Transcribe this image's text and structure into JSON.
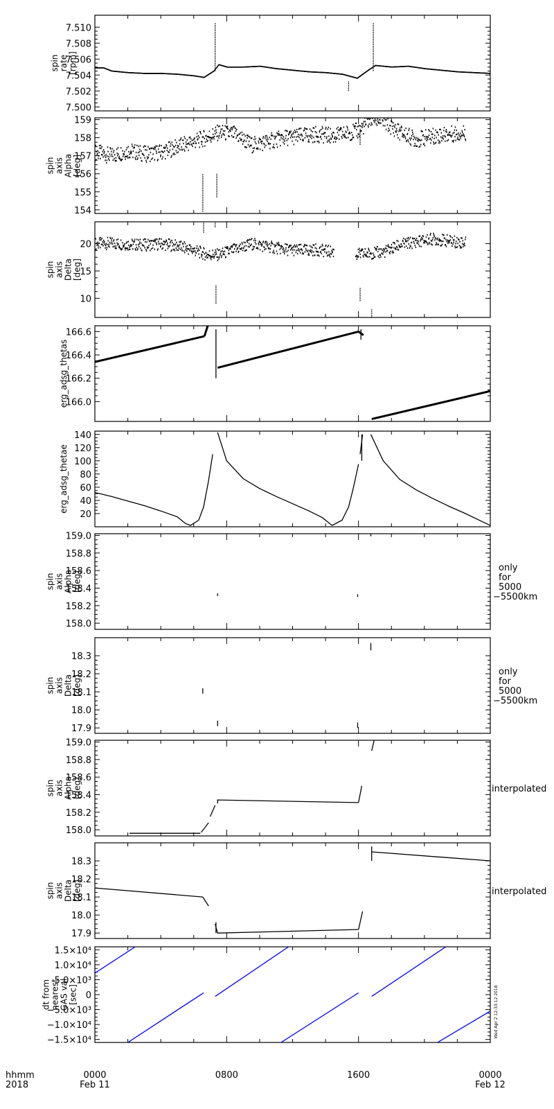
{
  "time_axis": {
    "row_labels": [
      "hhmm",
      "2018"
    ],
    "ticks": [
      {
        "time": "0000",
        "date": "Feb 11"
      },
      {
        "time": "0800",
        "date": ""
      },
      {
        "time": "1600",
        "date": ""
      },
      {
        "time": "0000",
        "date": "Feb 12"
      }
    ]
  },
  "stamp": "Wed Apr  2 12:33:12 2018",
  "colors": {
    "line": "#000000",
    "dt_series": "#0000ff"
  },
  "chart_data": [
    {
      "type": "scatter",
      "ylabel": [
        "spin",
        "rate",
        "[rpm]"
      ],
      "ylim": [
        7.4995,
        7.5115
      ],
      "yticks": [
        7.5,
        7.502,
        7.504,
        7.506,
        7.508,
        7.51
      ],
      "ytick_labels": [
        "7.500",
        "7.502",
        "7.504",
        "7.506",
        "7.508",
        "7.510"
      ],
      "side_note": [],
      "series": [
        {
          "points": [
            [
              0,
              7.5049
            ],
            [
              0.5,
              7.5049
            ],
            [
              1,
              7.5045
            ],
            [
              2,
              7.5043
            ],
            [
              3,
              7.5042
            ],
            [
              4,
              7.5042
            ],
            [
              5,
              7.5041
            ],
            [
              6,
              7.5039
            ],
            [
              6.6,
              7.5037
            ],
            [
              7.2,
              7.5045
            ],
            [
              7.5,
              7.5053
            ],
            [
              8,
              7.505
            ],
            [
              9,
              7.505
            ],
            [
              10,
              7.5051
            ],
            [
              11,
              7.5048
            ],
            [
              12,
              7.5046
            ],
            [
              13,
              7.5044
            ],
            [
              14,
              7.5043
            ],
            [
              15,
              7.5041
            ],
            [
              15.9,
              7.5036
            ],
            [
              16.5,
              7.5045
            ],
            [
              17,
              7.5052
            ],
            [
              18,
              7.505
            ],
            [
              19,
              7.5051
            ],
            [
              20,
              7.5048
            ],
            [
              21,
              7.5046
            ],
            [
              22,
              7.5044
            ],
            [
              23,
              7.5043
            ],
            [
              24,
              7.5042
            ]
          ]
        }
      ],
      "spikes": [
        [
          7.3,
          7.5045,
          7.5105
        ],
        [
          16.9,
          7.5045,
          7.5105
        ],
        [
          15.4,
          7.502,
          7.5032
        ]
      ]
    },
    {
      "type": "scatter",
      "ylabel": [
        "spin",
        "axis",
        "Alpha",
        "[deg]"
      ],
      "ylim": [
        153.8,
        159.1
      ],
      "yticks": [
        154,
        155,
        156,
        157,
        158,
        159
      ],
      "ytick_labels": [
        "154",
        "155",
        "156",
        "157",
        "158",
        "159"
      ],
      "side_note": [],
      "series": [
        {
          "points": [
            [
              0,
              157.2
            ],
            [
              1,
              157.0
            ],
            [
              2,
              157.3
            ],
            [
              3,
              157.1
            ],
            [
              4,
              157.2
            ],
            [
              5,
              157.5
            ],
            [
              6,
              157.8
            ],
            [
              6.7,
              158.0
            ],
            [
              7.5,
              158.3
            ],
            [
              8.5,
              158.2
            ],
            [
              9.5,
              157.6
            ],
            [
              10.5,
              157.8
            ],
            [
              11.5,
              158.0
            ],
            [
              12.5,
              158.1
            ],
            [
              13.5,
              158.2
            ],
            [
              14.5,
              158.1
            ],
            [
              15.5,
              158.3
            ],
            [
              16,
              158.4
            ],
            [
              16.8,
              159.1
            ],
            [
              17.5,
              158.9
            ],
            [
              18.5,
              158.3
            ],
            [
              19.5,
              157.9
            ],
            [
              20.5,
              158.1
            ],
            [
              21.5,
              158.2
            ],
            [
              22.5,
              158.3
            ],
            [
              24,
              158.4
            ]
          ]
        }
      ],
      "spikes": [
        [
          6.55,
          153.9,
          156.0
        ],
        [
          7.4,
          154.7,
          156.0
        ],
        [
          16.1,
          157.6,
          158.5
        ]
      ]
    },
    {
      "type": "scatter",
      "ylabel": [
        "spin",
        "axis",
        "Delta",
        "[deg]"
      ],
      "ylim": [
        6.5,
        24.0
      ],
      "yticks": [
        10,
        15,
        20
      ],
      "ytick_labels": [
        "10",
        "15",
        "20"
      ],
      "side_note": [],
      "series": [
        {
          "points": [
            [
              0,
              20.0
            ],
            [
              1,
              20.1
            ],
            [
              2,
              19.9
            ],
            [
              3,
              19.8
            ],
            [
              4,
              20.0
            ],
            [
              5,
              19.6
            ],
            [
              6,
              18.8
            ],
            [
              6.8,
              18.0
            ],
            [
              7.5,
              18.0
            ],
            [
              8.5,
              19.0
            ],
            [
              9.5,
              20.0
            ],
            [
              10.5,
              19.5
            ],
            [
              11.5,
              19.0
            ],
            [
              12.5,
              18.8
            ],
            [
              13.5,
              18.9
            ],
            [
              14.5,
              18.5
            ],
            [
              15.8,
              18.0
            ],
            [
              16.8,
              18.3
            ],
            [
              17.5,
              18.5
            ],
            [
              18.5,
              19.8
            ],
            [
              19.5,
              20.4
            ],
            [
              20.5,
              20.9
            ],
            [
              21.5,
              20.5
            ],
            [
              22.5,
              20.2
            ],
            [
              24,
              20.0
            ]
          ]
        }
      ],
      "spikes": [
        [
          6.6,
          22.0,
          24.0
        ],
        [
          7.3,
          23.0,
          24.0
        ],
        [
          7.35,
          9.0,
          12.5
        ],
        [
          16.1,
          9.5,
          12.0
        ],
        [
          16.8,
          6.5,
          8.0
        ]
      ]
    },
    {
      "type": "line",
      "ylabel": [
        "erg_adsg_thetas"
      ],
      "ylim": [
        165.83,
        166.65
      ],
      "yticks": [
        166.0,
        166.2,
        166.4,
        166.6
      ],
      "ytick_labels": [
        "166.0",
        "166.2",
        "166.4",
        "166.6"
      ],
      "side_note": [],
      "series": [
        {
          "segments": [
            [
              [
                0,
                166.34
              ],
              [
                6.65,
                166.56
              ]
            ],
            [
              [
                6.65,
                166.56
              ],
              [
                6.85,
                166.65
              ]
            ],
            [
              [
                7.45,
                166.29
              ],
              [
                16.0,
                166.6
              ]
            ],
            [
              [
                16.0,
                166.6
              ],
              [
                16.3,
                166.57
              ]
            ],
            [
              [
                16.8,
                165.85
              ],
              [
                24,
                166.09
              ]
            ]
          ]
        }
      ],
      "spikes": [
        [
          7.35,
          166.2,
          166.62
        ],
        [
          16.15,
          166.53,
          166.62
        ]
      ]
    },
    {
      "type": "line",
      "ylabel": [
        "erg_adsg_thetae"
      ],
      "ylim": [
        0,
        145
      ],
      "yticks": [
        20,
        40,
        60,
        80,
        100,
        120,
        140
      ],
      "ytick_labels": [
        "20",
        "40",
        "60",
        "80",
        "100",
        "120",
        "140"
      ],
      "side_note": [],
      "series": [
        {
          "segments": [
            [
              [
                0,
                52
              ],
              [
                1,
                46
              ],
              [
                2,
                39
              ],
              [
                3,
                32
              ],
              [
                4,
                24
              ],
              [
                5,
                15
              ],
              [
                5.5,
                5
              ],
              [
                5.8,
                2
              ],
              [
                6.3,
                10
              ],
              [
                6.6,
                30
              ],
              [
                6.9,
                70
              ],
              [
                7.15,
                110
              ]
            ],
            [
              [
                7.45,
                143
              ],
              [
                8,
                100
              ],
              [
                9,
                73
              ],
              [
                10,
                58
              ],
              [
                11,
                46
              ],
              [
                12,
                35
              ],
              [
                13,
                24
              ],
              [
                13.8,
                14
              ],
              [
                14.4,
                2
              ],
              [
                15,
                10
              ],
              [
                15.4,
                30
              ],
              [
                15.7,
                60
              ],
              [
                16.0,
                95
              ]
            ],
            [
              [
                16.1,
                110
              ],
              [
                16.25,
                140
              ]
            ],
            [
              [
                16.75,
                140
              ],
              [
                17.5,
                100
              ],
              [
                18.5,
                72
              ],
              [
                19.5,
                56
              ],
              [
                20.5,
                43
              ],
              [
                21.5,
                31
              ],
              [
                22.5,
                20
              ],
              [
                23.5,
                8
              ],
              [
                24,
                2
              ]
            ]
          ]
        }
      ],
      "spikes": [
        [
          16.2,
          100,
          140
        ]
      ]
    },
    {
      "type": "scatter",
      "ylabel": [
        "spin",
        "axis",
        "Alpha",
        "[deg]"
      ],
      "ylim": [
        157.93,
        159.02
      ],
      "yticks": [
        158.0,
        158.2,
        158.4,
        158.6,
        158.8,
        159.0
      ],
      "ytick_labels": [
        "158.0",
        "158.2",
        "158.4",
        "158.6",
        "158.8",
        "159.0"
      ],
      "side_note": [
        "only",
        "for",
        "5000",
        "−5500km"
      ],
      "series": [],
      "spikes": [
        [
          7.45,
          158.31,
          158.34
        ],
        [
          15.95,
          158.3,
          158.33
        ],
        [
          16.75,
          158.99,
          159.02
        ]
      ]
    },
    {
      "type": "scatter",
      "ylabel": [
        "spin",
        "axis",
        "Delta",
        "[deg]"
      ],
      "ylim": [
        17.87,
        18.4
      ],
      "yticks": [
        17.9,
        18.0,
        18.1,
        18.2,
        18.3
      ],
      "ytick_labels": [
        "17.9",
        "18.0",
        "18.1",
        "18.2",
        "18.3"
      ],
      "side_note": [
        "only",
        "for",
        "5000",
        "−5500km"
      ],
      "series": [],
      "spikes": [
        [
          6.55,
          18.09,
          18.12
        ],
        [
          7.45,
          17.91,
          17.94
        ],
        [
          15.95,
          17.9,
          17.93
        ],
        [
          16.75,
          18.33,
          18.37
        ]
      ]
    },
    {
      "type": "line",
      "ylabel": [
        "spin",
        "axis",
        "Alpha",
        "[deg]"
      ],
      "ylim": [
        157.93,
        159.02
      ],
      "yticks": [
        158.0,
        158.2,
        158.4,
        158.6,
        158.8,
        159.0
      ],
      "ytick_labels": [
        "158.0",
        "158.2",
        "158.4",
        "158.6",
        "158.8",
        "159.0"
      ],
      "side_note": [
        "interpolated"
      ],
      "series": [
        {
          "segments": [
            [
              [
                2.1,
                157.96
              ],
              [
                6.4,
                157.96
              ]
            ],
            [
              [
                6.45,
                157.97
              ],
              [
                6.9,
                158.08
              ]
            ],
            [
              [
                7.0,
                158.15
              ],
              [
                7.3,
                158.28
              ]
            ],
            [
              [
                7.45,
                158.3
              ],
              [
                7.45,
                158.34
              ],
              [
                16.0,
                158.31
              ]
            ],
            [
              [
                16.0,
                158.31
              ],
              [
                16.2,
                158.5
              ]
            ],
            [
              [
                16.8,
                158.9
              ],
              [
                16.95,
                159.02
              ]
            ]
          ]
        }
      ],
      "spikes": []
    },
    {
      "type": "line",
      "ylabel": [
        "spin",
        "axis",
        "Delta",
        "[deg]"
      ],
      "ylim": [
        17.87,
        18.4
      ],
      "yticks": [
        17.9,
        18.0,
        18.1,
        18.2,
        18.3
      ],
      "ytick_labels": [
        "17.9",
        "18.0",
        "18.1",
        "18.2",
        "18.3"
      ],
      "side_note": [
        "interpolated"
      ],
      "series": [
        {
          "segments": [
            [
              [
                0,
                18.15
              ],
              [
                6.55,
                18.1
              ]
            ],
            [
              [
                6.55,
                18.1
              ],
              [
                6.9,
                18.05
              ]
            ],
            [
              [
                7.3,
                17.95
              ],
              [
                7.45,
                17.9
              ],
              [
                16.0,
                17.92
              ]
            ],
            [
              [
                16.0,
                17.92
              ],
              [
                16.25,
                18.02
              ]
            ],
            [
              [
                16.8,
                18.35
              ],
              [
                24,
                18.3
              ]
            ]
          ]
        }
      ],
      "spikes": [
        [
          16.8,
          18.3,
          18.38
        ],
        [
          7.35,
          17.9,
          17.96
        ]
      ]
    },
    {
      "type": "line",
      "ylabel": [
        "dt from",
        "nearest",
        "GAS val",
        "[sec]"
      ],
      "ylim": [
        -16000,
        16000
      ],
      "yticks": [
        -15000,
        -10000,
        -5000,
        0,
        5000,
        10000,
        15000
      ],
      "ytick_labels": [
        "−1.5×10⁴",
        "−1.0×10⁴",
        "−5.0×10³",
        "0",
        "5.0×10³",
        "1.0×10⁴",
        "1.5×10⁴"
      ],
      "side_note": [],
      "series": [
        {
          "color": "#0000ff",
          "segments": [
            [
              [
                0,
                7200
              ],
              [
                2.45,
                16000
              ]
            ],
            [
              [
                2.0,
                -16000
              ],
              [
                6.6,
                600
              ]
            ],
            [
              [
                7.3,
                -600
              ],
              [
                11.75,
                16000
              ]
            ],
            [
              [
                11.3,
                -16000
              ],
              [
                16.0,
                600
              ]
            ],
            [
              [
                16.8,
                -600
              ],
              [
                21.3,
                16000
              ]
            ],
            [
              [
                20.8,
                -16000
              ],
              [
                24,
                -5500
              ]
            ]
          ]
        }
      ],
      "spikes": []
    }
  ]
}
